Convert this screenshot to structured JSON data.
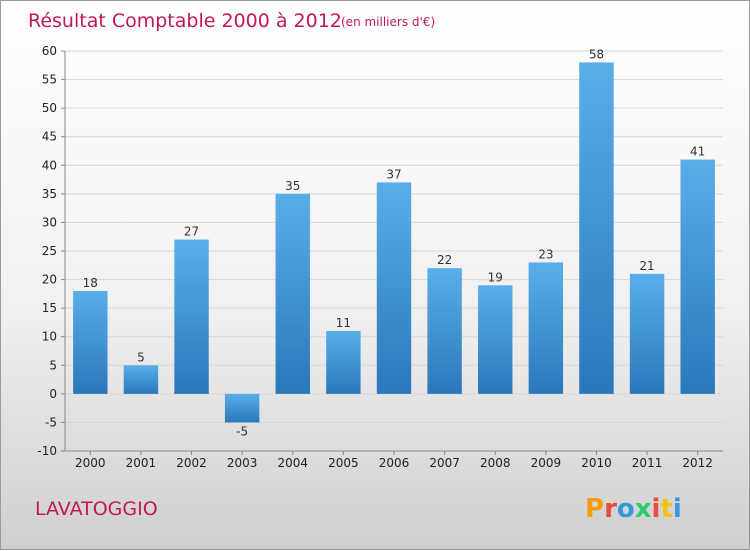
{
  "header": {
    "title": "Résultat Comptable 2000 à 2012",
    "subtitle": "(en milliers d'€)"
  },
  "footer": {
    "commune": "LAVATOGGIO",
    "logo": "Proxiti"
  },
  "colors": {
    "title": "#c2185b",
    "bar_top": "#5aaee8",
    "bar_bottom": "#2a78bb",
    "grid": "#d6d6d6"
  },
  "chart_data": {
    "type": "bar",
    "title": "Résultat Comptable 2000 à 2012",
    "subtitle": "(en milliers d'€)",
    "categories": [
      "2000",
      "2001",
      "2002",
      "2003",
      "2004",
      "2005",
      "2006",
      "2007",
      "2008",
      "2009",
      "2010",
      "2011",
      "2012"
    ],
    "values": [
      18,
      5,
      27,
      -5,
      35,
      11,
      37,
      22,
      19,
      23,
      58,
      21,
      41
    ],
    "ylim": [
      -10,
      60
    ],
    "yticks": [
      -10,
      -5,
      0,
      5,
      10,
      15,
      20,
      25,
      30,
      35,
      40,
      45,
      50,
      55,
      60
    ],
    "grid": true
  }
}
